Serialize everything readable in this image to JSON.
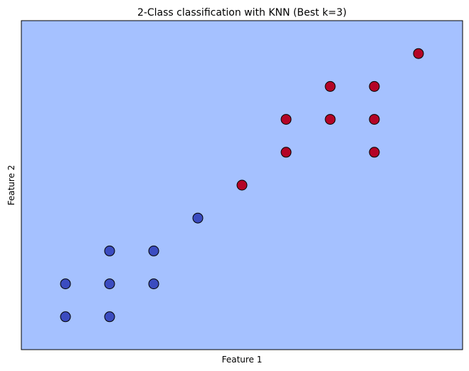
{
  "chart_data": {
    "type": "scatter",
    "title": "2-Class classification with KNN (Best k=3)",
    "xlabel": "Feature 1",
    "ylabel": "Feature 2",
    "xticks": [],
    "yticks": [],
    "xlim": [
      0,
      10
    ],
    "ylim": [
      0,
      10
    ],
    "grid": false,
    "legend": "none",
    "background_region_color": "#a5c1ff",
    "series": [
      {
        "color": "#3b4cc0",
        "points": [
          {
            "x": 1,
            "y": 1
          },
          {
            "x": 2,
            "y": 1
          },
          {
            "x": 1,
            "y": 2
          },
          {
            "x": 2,
            "y": 2
          },
          {
            "x": 3,
            "y": 2
          },
          {
            "x": 2,
            "y": 3
          },
          {
            "x": 3,
            "y": 3
          },
          {
            "x": 4,
            "y": 4
          }
        ]
      },
      {
        "color": "#b40426",
        "points": [
          {
            "x": 5,
            "y": 5
          },
          {
            "x": 6,
            "y": 6
          },
          {
            "x": 8,
            "y": 6
          },
          {
            "x": 6,
            "y": 7
          },
          {
            "x": 7,
            "y": 7
          },
          {
            "x": 8,
            "y": 7
          },
          {
            "x": 7,
            "y": 8
          },
          {
            "x": 8,
            "y": 8
          },
          {
            "x": 9,
            "y": 9
          }
        ]
      }
    ]
  }
}
